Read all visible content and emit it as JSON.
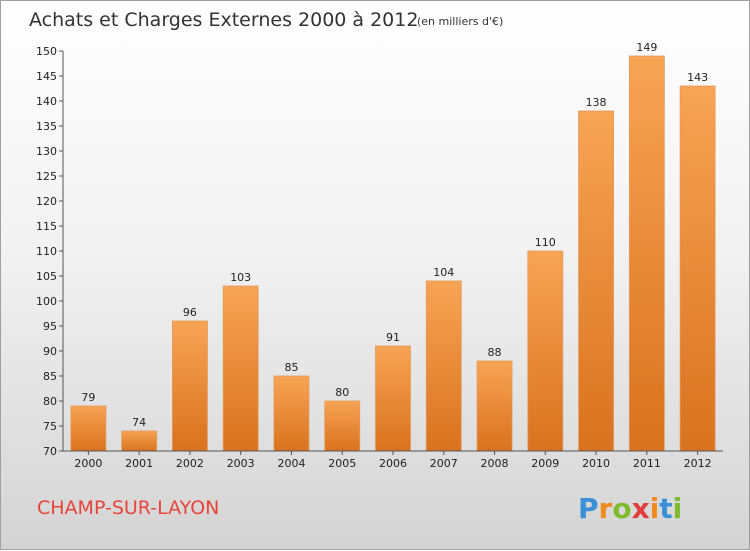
{
  "chart_data": {
    "type": "bar",
    "title": "Achats et Charges Externes 2000 à 2012",
    "subtitle": "(en milliers d'€)",
    "categories": [
      "2000",
      "2001",
      "2002",
      "2003",
      "2004",
      "2005",
      "2006",
      "2007",
      "2008",
      "2009",
      "2010",
      "2011",
      "2012"
    ],
    "values": [
      79,
      74,
      96,
      103,
      85,
      80,
      91,
      104,
      88,
      110,
      138,
      149,
      143
    ],
    "ylim": [
      70,
      150
    ],
    "yticks": [
      70,
      75,
      80,
      85,
      90,
      95,
      100,
      105,
      110,
      115,
      120,
      125,
      130,
      135,
      140,
      145,
      150
    ],
    "grid": false,
    "bar_color": "#f0882e"
  },
  "footer": {
    "city": "CHAMP-SUR-LAYON",
    "logo_letters": [
      "P",
      "r",
      "o",
      "x",
      "i",
      "t",
      "i"
    ],
    "logo_colors": [
      "#3a8fd6",
      "#f08c1e",
      "#7dbb2d",
      "#e23b3b",
      "#f08c1e",
      "#3a8fd6",
      "#7dbb2d"
    ]
  }
}
